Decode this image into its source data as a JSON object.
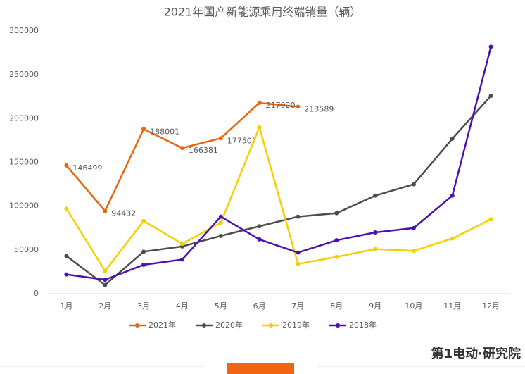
{
  "chart_data": {
    "type": "line",
    "title": "2021年国产新能源乘用终端销量（辆）",
    "categories": [
      "1月",
      "2月",
      "3月",
      "4月",
      "5月",
      "6月",
      "7月",
      "8月",
      "9月",
      "10月",
      "11月",
      "12月"
    ],
    "series": [
      {
        "name": "2021年",
        "color": "#e8650f",
        "values": [
          146499,
          94432,
          188001,
          166381,
          177507,
          217920,
          213589,
          null,
          null,
          null,
          null,
          null
        ],
        "data_labels": true
      },
      {
        "name": "2020年",
        "color": "#4d4d4d",
        "values": [
          43000,
          10000,
          48000,
          54000,
          66000,
          77000,
          88000,
          92000,
          112000,
          125000,
          177000,
          226000
        ]
      },
      {
        "name": "2019年",
        "color": "#f5d000",
        "values": [
          97000,
          26000,
          83000,
          57000,
          81000,
          190000,
          34000,
          42000,
          51000,
          49000,
          63000,
          85000
        ]
      },
      {
        "name": "2018年",
        "color": "#4b12b0",
        "values": [
          22000,
          16000,
          33000,
          39000,
          88000,
          62000,
          47000,
          61000,
          70000,
          75000,
          112000,
          282000
        ]
      }
    ],
    "ylim": [
      0,
      300000
    ],
    "yticks": [
      0,
      50000,
      100000,
      150000,
      200000,
      250000,
      300000
    ],
    "grid": false,
    "legend": "bottom",
    "branding": "第1电动·研究院"
  }
}
